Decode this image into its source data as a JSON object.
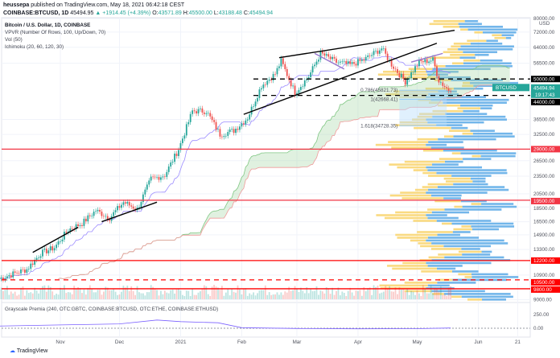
{
  "header": {
    "publisher": "heussepa",
    "published_text": "published on TradingView.com, May 18, 2021 06:42:18 CEST",
    "symbol": "COINBASE:BTCUSD, 1D",
    "last": "45494.95",
    "change": "+1914.45 (+4.39%)",
    "o_label": "O:",
    "open": "43571.89",
    "h_label": "H:",
    "high": "45500.00",
    "l_label": "L:",
    "low": "43188.48",
    "c_label": "C:",
    "close": "45494.94"
  },
  "legend": {
    "title": "Bitcoin / U.S. Dollar, 1D, COINBASE",
    "indicators": [
      "VPVR (Number Of Rows, 100, Up/Down, 70)",
      "Vol (50)",
      "Ichimoku (20, 60, 120, 30)"
    ]
  },
  "lower_pane": {
    "title": "Grayscale Premia (240, OTC:GBTC, COINBASE:BTCUSD, OTC:ETHE, COINBASE:ETHUSD)",
    "ticks": [
      "250.00",
      "0.00"
    ]
  },
  "price_axis": {
    "currency": "USD",
    "ticks": [
      "80000.00",
      "72000.00",
      "64000.00",
      "56500.00",
      "36500.00",
      "32500.00",
      "26500.00",
      "23500.00",
      "20500.00",
      "18500.00",
      "16500.00",
      "14900.00",
      "13300.00",
      "10900.00",
      "9000.00"
    ],
    "tick_values": [
      80000,
      72000,
      64000,
      56500,
      36500,
      32500,
      26500,
      23500,
      20500,
      18500,
      16500,
      14900,
      13300,
      10900,
      9000
    ],
    "current_symbol": "BTCUSD",
    "current_price": "45494.94",
    "countdown": "19:17:43",
    "levels": [
      {
        "label": "50000.00",
        "value": 50000,
        "color": "#000000",
        "style": "dashed"
      },
      {
        "label": "44000.00",
        "value": 44000,
        "color": "#000000",
        "style": "dashed"
      },
      {
        "label": "29000.00",
        "value": 29000,
        "color": "#f23645",
        "style": "solid"
      },
      {
        "label": "19500.00",
        "value": 19500,
        "color": "#f23645",
        "style": "solid"
      },
      {
        "label": "12200.00",
        "value": 12200,
        "color": "#ff0000",
        "style": "solid"
      },
      {
        "label": "10500.00",
        "value": 10500,
        "color": "#ff0000",
        "style": "dashed"
      },
      {
        "label": "9800.00",
        "value": 9800,
        "color": "#ff0000",
        "style": "solid"
      }
    ]
  },
  "fib": [
    {
      "label": "0.786(45821.73)",
      "value": 45821.73
    },
    {
      "label": "1(42668.41)",
      "value": 42668.41
    },
    {
      "label": "1.618(34728.35)",
      "value": 34728.35
    }
  ],
  "time_axis": {
    "ticks": [
      "Nov",
      "Dec",
      "2021",
      "Feb",
      "Mar",
      "Apr",
      "May",
      "Jun",
      "21"
    ],
    "tick_dates": [
      "2020-11-01",
      "2020-12-01",
      "2021-01-01",
      "2021-02-01",
      "2021-03-01",
      "2021-04-01",
      "2021-05-01",
      "2021-06-01",
      "2021-06-21"
    ]
  },
  "chart_data": {
    "type": "candlestick",
    "title": "Bitcoin / U.S. Dollar, 1D, COINBASE",
    "y_scale": "log",
    "ylim": [
      9000,
      80000
    ],
    "xlim": [
      "2020-10-01",
      "2021-06-25"
    ],
    "x": [
      "2020-10-01",
      "2020-10-08",
      "2020-10-15",
      "2020-10-22",
      "2020-10-29",
      "2020-11-05",
      "2020-11-12",
      "2020-11-19",
      "2020-11-26",
      "2020-12-03",
      "2020-12-10",
      "2020-12-17",
      "2020-12-24",
      "2020-12-31",
      "2021-01-07",
      "2021-01-14",
      "2021-01-21",
      "2021-01-28",
      "2021-02-04",
      "2021-02-11",
      "2021-02-18",
      "2021-02-21",
      "2021-02-28",
      "2021-03-07",
      "2021-03-13",
      "2021-03-21",
      "2021-03-28",
      "2021-04-04",
      "2021-04-13",
      "2021-04-18",
      "2021-04-25",
      "2021-05-02",
      "2021-05-09",
      "2021-05-12",
      "2021-05-16",
      "2021-05-18"
    ],
    "close": [
      10600,
      11000,
      11400,
      12900,
      13500,
      15500,
      16300,
      18000,
      17000,
      19200,
      18200,
      23000,
      23700,
      29000,
      39000,
      39000,
      32500,
      33500,
      37000,
      47500,
      52000,
      57500,
      45000,
      51000,
      61000,
      57000,
      55800,
      58000,
      63500,
      56000,
      49000,
      57000,
      58000,
      49500,
      46500,
      45494.94
    ],
    "premia": [
      [
        "2020-10-01",
        40
      ],
      [
        "2020-11-01",
        60
      ],
      [
        "2020-12-01",
        80
      ],
      [
        "2020-12-20",
        150
      ],
      [
        "2021-01-01",
        120
      ],
      [
        "2021-01-20",
        100
      ],
      [
        "2021-02-01",
        10
      ],
      [
        "2021-03-01",
        -5
      ],
      [
        "2021-04-01",
        -10
      ],
      [
        "2021-05-01",
        -8
      ],
      [
        "2021-05-18",
        5
      ]
    ],
    "colors": {
      "up": "#26a69a",
      "down": "#ef5350",
      "vp_up": "#5aa9e6",
      "vp_down": "#f9d36b"
    }
  }
}
